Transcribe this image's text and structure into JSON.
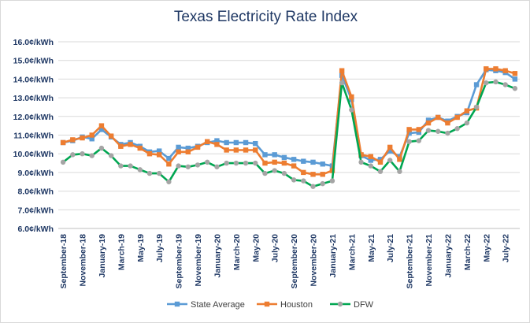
{
  "chart_data": {
    "type": "line",
    "title": "Texas Electricity Rate Index",
    "xlabel": "",
    "ylabel": "",
    "ylim": [
      6.0,
      16.0
    ],
    "yticks": [
      "6.0¢/kWh",
      "7.0¢/kWh",
      "8.0¢/kWh",
      "9.0¢/kWh",
      "10.0¢/kWh",
      "11.0¢/kWh",
      "12.0¢/kWh",
      "13.0¢/kWh",
      "14.0¢/kWh",
      "15.0¢/kWh",
      "16.0¢/kWh"
    ],
    "grid": true,
    "legend": "bottom",
    "x": [
      "Sep-18",
      "Oct-18",
      "Nov-18",
      "Dec-18",
      "Jan-19",
      "Feb-19",
      "Mar-19",
      "Apr-19",
      "May-19",
      "Jun-19",
      "Jul-19",
      "Aug-19",
      "Sep-19",
      "Oct-19",
      "Nov-19",
      "Dec-19",
      "Jan-20",
      "Feb-20",
      "Mar-20",
      "Apr-20",
      "May-20",
      "Jun-20",
      "Jul-20",
      "Aug-20",
      "Sep-20",
      "Oct-20",
      "Nov-20",
      "Dec-20",
      "Jan-21",
      "Feb-21",
      "Mar-21",
      "Apr-21",
      "May-21",
      "Jun-21",
      "Jul-21",
      "Aug-21",
      "Sep-21",
      "Oct-21",
      "Nov-21",
      "Dec-21",
      "Jan-22",
      "Feb-22",
      "Mar-22",
      "Apr-22",
      "May-22",
      "Jun-22",
      "Jul-22",
      "Aug-22"
    ],
    "x_tick_labels": [
      "September-18",
      "November-18",
      "January-19",
      "March-19",
      "May-19",
      "July-19",
      "September-19",
      "November-19",
      "January-20",
      "March-20",
      "May-20",
      "July-20",
      "September-20",
      "November-20",
      "January-21",
      "March-21",
      "May-21",
      "July-21",
      "September-21",
      "November-21",
      "January-22",
      "March-22",
      "May-22",
      "July-22"
    ],
    "series": [
      {
        "name": "State Average",
        "color": "#5b9bd5",
        "marker": "square",
        "values": [
          10.6,
          10.7,
          10.9,
          10.8,
          11.3,
          10.9,
          10.5,
          10.6,
          10.4,
          10.1,
          10.15,
          9.75,
          10.35,
          10.3,
          10.4,
          10.6,
          10.7,
          10.6,
          10.6,
          10.6,
          10.55,
          9.95,
          9.95,
          9.8,
          9.7,
          9.6,
          9.55,
          9.45,
          9.35,
          14.2,
          12.9,
          9.9,
          9.65,
          9.7,
          10.15,
          9.85,
          11.1,
          11.15,
          11.8,
          11.95,
          11.75,
          12.0,
          12.2,
          13.7,
          14.5,
          14.45,
          14.35,
          14.0
        ]
      },
      {
        "name": "Houston",
        "color": "#ed7d31",
        "marker": "square",
        "values": [
          10.6,
          10.75,
          10.85,
          11.0,
          11.5,
          10.95,
          10.4,
          10.5,
          10.3,
          10.0,
          9.95,
          9.45,
          10.1,
          10.1,
          10.35,
          10.65,
          10.5,
          10.2,
          10.2,
          10.2,
          10.2,
          9.5,
          9.55,
          9.5,
          9.35,
          9.0,
          8.9,
          8.9,
          9.1,
          14.45,
          13.05,
          9.95,
          9.85,
          9.55,
          10.35,
          9.7,
          11.3,
          11.3,
          11.65,
          11.95,
          11.65,
          11.95,
          12.3,
          12.45,
          14.55,
          14.55,
          14.45,
          14.3
        ]
      },
      {
        "name": "DFW",
        "color": "#a5a5a5",
        "marker": "circle",
        "line_color": "#00a651",
        "values": [
          9.55,
          9.95,
          10.0,
          9.9,
          10.3,
          9.9,
          9.35,
          9.35,
          9.15,
          8.95,
          8.95,
          8.5,
          9.35,
          9.3,
          9.4,
          9.55,
          9.3,
          9.5,
          9.5,
          9.5,
          9.5,
          8.95,
          9.1,
          8.95,
          8.6,
          8.55,
          8.25,
          8.4,
          8.55,
          13.8,
          12.35,
          9.55,
          9.35,
          9.05,
          9.65,
          9.05,
          10.65,
          10.7,
          11.25,
          11.2,
          11.1,
          11.35,
          11.65,
          12.5,
          13.8,
          13.85,
          13.7,
          13.5
        ]
      }
    ]
  }
}
